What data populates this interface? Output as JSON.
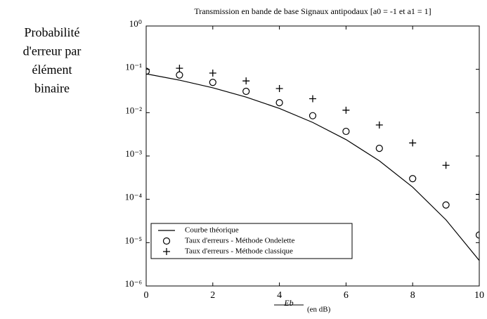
{
  "chart_data": {
    "type": "line",
    "title": "Transmission en bande de base  Signaux antipodaux [a0 = -1 et a1 = 1]",
    "ylabel": [
      "Probabilité",
      "d'erreur par",
      "élément",
      "binaire"
    ],
    "xlabel": "Eb",
    "xlabel_unit": "(en dB)",
    "log_y": true,
    "legend": "lower left",
    "xlim": [
      0,
      10
    ],
    "xticks": [
      0,
      2,
      4,
      6,
      8,
      10
    ],
    "ylim": [
      1e-06,
      1
    ],
    "yticks": [
      {
        "value": 1,
        "label": "10⁰"
      },
      {
        "value": 0.1,
        "label": "10⁻¹"
      },
      {
        "value": 0.01,
        "label": "10⁻²"
      },
      {
        "value": 0.001,
        "label": "10⁻³"
      },
      {
        "value": 0.0001,
        "label": "10⁻⁴"
      },
      {
        "value": 1e-05,
        "label": "10⁻⁵"
      },
      {
        "value": 1e-06,
        "label": "10⁻⁶"
      }
    ],
    "series": [
      {
        "name": "Courbe théorique",
        "color": "#000000",
        "marker": "none",
        "x": [
          0,
          1,
          2,
          3,
          4,
          5,
          6,
          7,
          8,
          9,
          10
        ],
        "values": [
          0.0786,
          0.0563,
          0.0375,
          0.0229,
          0.0125,
          0.00595,
          0.00239,
          0.000773,
          0.000191,
          3.36e-05,
          3.87e-06
        ]
      },
      {
        "name": "Taux d'erreurs - Méthode Ondelette",
        "color": "#000000",
        "marker": "circle",
        "x": [
          0,
          1,
          2,
          3,
          4,
          5,
          6,
          7,
          8,
          9,
          10
        ],
        "values": [
          0.09,
          0.074,
          0.05,
          0.031,
          0.017,
          0.0085,
          0.0037,
          0.0015,
          0.0003,
          7.4e-05,
          1.5e-05
        ]
      },
      {
        "name": "Taux d'erreurs - Méthode classique",
        "color": "#000000",
        "marker": "plus",
        "x": [
          1,
          2,
          3,
          4,
          5,
          6,
          7,
          8,
          9,
          10
        ],
        "values": [
          0.106,
          0.082,
          0.054,
          0.036,
          0.021,
          0.0114,
          0.0052,
          0.002,
          0.00061,
          0.00013
        ]
      }
    ]
  }
}
